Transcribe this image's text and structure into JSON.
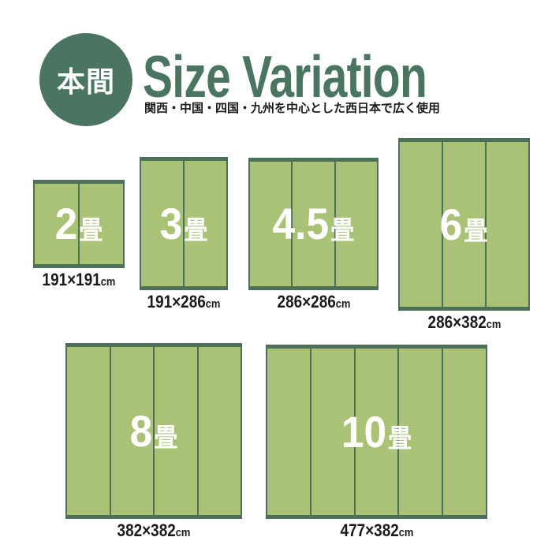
{
  "header": {
    "badge_label": "本間",
    "title": "Size Variation",
    "subtitle": "関西・中国・四国・九州を中心とした西日本で広く使用"
  },
  "colors": {
    "accent_green": "#4a7560",
    "mat_body": "#a9c275",
    "mat_border": "#4d7058",
    "text_dark": "#1a1a1a",
    "label_white": "#ffffff"
  },
  "mats": [
    {
      "name": "2-jo",
      "count": "2",
      "unit": "畳",
      "dimension": "191×191",
      "dimension_unit": "cm",
      "panels": 2
    },
    {
      "name": "3-jo",
      "count": "3",
      "unit": "畳",
      "dimension": "191×286",
      "dimension_unit": "cm",
      "panels": 2
    },
    {
      "name": "4.5-jo",
      "count": "4.5",
      "unit": "畳",
      "dimension": "286×286",
      "dimension_unit": "cm",
      "panels": 3
    },
    {
      "name": "6-jo",
      "count": "6",
      "unit": "畳",
      "dimension": "286×382",
      "dimension_unit": "cm",
      "panels": 3
    },
    {
      "name": "8-jo",
      "count": "8",
      "unit": "畳",
      "dimension": "382×382",
      "dimension_unit": "cm",
      "panels": 4
    },
    {
      "name": "10-jo",
      "count": "10",
      "unit": "畳",
      "dimension": "477×382",
      "dimension_unit": "cm",
      "panels": 5
    }
  ]
}
